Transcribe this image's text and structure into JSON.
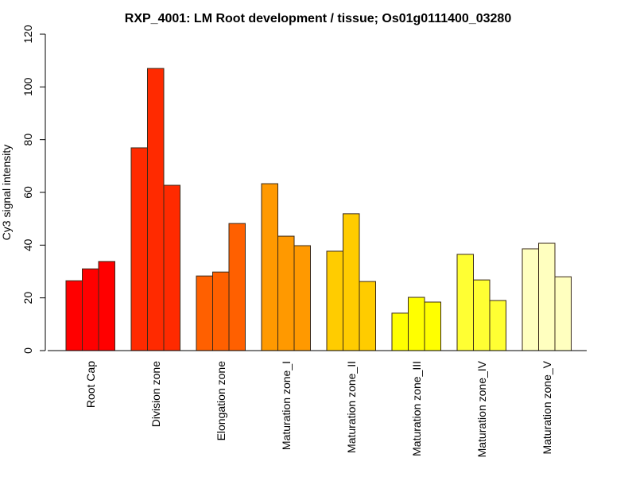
{
  "chart_data": {
    "type": "bar",
    "title": "RXP_4001: LM Root development / tissue; Os01g0111400_03280",
    "xlabel": "",
    "ylabel": "Cy3 signal intensity",
    "ylim": [
      0,
      120
    ],
    "yticks": [
      0,
      20,
      40,
      60,
      80,
      100,
      120
    ],
    "grid": false,
    "legend": "none",
    "categories": [
      "Root Cap",
      "Division zone",
      "Elongation zone",
      "Maturation zone_I",
      "Maturation zone_II",
      "Maturation zone_III",
      "Maturation zone_IV",
      "Maturation zone_V"
    ],
    "colors": [
      "#FF0000",
      "#FF2A00",
      "#FF6000",
      "#FF9900",
      "#FFCC00",
      "#FFFF00",
      "#FFFF33",
      "#FFFFBF"
    ],
    "replicates_per_group": 3,
    "values": [
      [
        26.5,
        31.0,
        33.8
      ],
      [
        76.9,
        107.0,
        62.7
      ],
      [
        28.3,
        29.8,
        48.2
      ],
      [
        63.3,
        43.4,
        39.8
      ],
      [
        37.7,
        51.9,
        26.2
      ],
      [
        14.2,
        20.2,
        18.4
      ],
      [
        36.5,
        26.8,
        19.0
      ],
      [
        38.6,
        40.7,
        28.0
      ]
    ]
  }
}
